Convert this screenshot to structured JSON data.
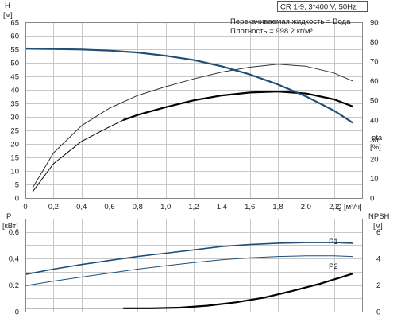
{
  "chart_data": [
    {
      "type": "line",
      "title": "CR 1-9, 3*400 V, 50Hz",
      "annotations": [
        "Перекачиваемая жидкость = Вода",
        "Плотность = 998.2 кг/м³"
      ],
      "x_axis": {
        "label": "Q [м³/ч]",
        "ticks": [
          "0",
          "0,2",
          "0,4",
          "0,6",
          "0,8",
          "1,0",
          "1,2",
          "1,4",
          "1,6",
          "1,8",
          "2,0",
          "2,2"
        ],
        "range": [
          0,
          2.4
        ]
      },
      "y_left": {
        "label_top": "H",
        "unit": "[м]",
        "ticks": [
          "0",
          "5",
          "10",
          "15",
          "20",
          "25",
          "30",
          "35",
          "40",
          "45",
          "50",
          "55",
          "60",
          "65"
        ],
        "range": [
          0,
          65
        ]
      },
      "y_right": {
        "label_top": "eta",
        "unit": "[%]",
        "ticks": [
          "0",
          "10",
          "20",
          "30",
          "40",
          "50",
          "60",
          "70",
          "80",
          "90"
        ],
        "range": [
          0,
          90
        ]
      },
      "grid": true,
      "series": [
        {
          "name": "",
          "axis": "left",
          "color": "#1f4e79",
          "x": [
            0,
            0.2,
            0.4,
            0.6,
            0.8,
            1.0,
            1.2,
            1.4,
            1.6,
            1.8,
            2.0,
            2.2,
            2.33
          ],
          "y": [
            55.3,
            55.1,
            54.9,
            54.5,
            53.8,
            52.6,
            51.0,
            48.7,
            45.7,
            42.0,
            37.6,
            32.3,
            27.9
          ]
        },
        {
          "name": "",
          "axis": "right",
          "color": "#333333",
          "x": [
            0.05,
            0.2,
            0.4,
            0.6,
            0.8,
            1.0,
            1.2,
            1.4,
            1.6,
            1.8,
            2.0,
            2.2,
            2.33
          ],
          "y": [
            5,
            23,
            37,
            46,
            52.5,
            57,
            61,
            64.5,
            67,
            68.5,
            67.5,
            64,
            60
          ]
        },
        {
          "name": "",
          "axis": "right",
          "color": "#000000",
          "x": [
            0.05,
            0.2,
            0.4,
            0.6,
            0.7,
            0.8,
            1.0,
            1.2,
            1.4,
            1.6,
            1.8,
            2.0,
            2.2,
            2.33
          ],
          "y": [
            3,
            17.5,
            29,
            36.5,
            40,
            42.5,
            46.5,
            50,
            52.5,
            54,
            54.5,
            53.5,
            50.5,
            47
          ]
        }
      ]
    },
    {
      "type": "line",
      "x_axis": {
        "range": [
          0,
          2.4
        ]
      },
      "y_left": {
        "label_top": "P",
        "unit": "[кВт]",
        "ticks": [
          "0",
          "0.2",
          "0.4",
          "0.6"
        ],
        "range": [
          0,
          0.7
        ]
      },
      "y_right": {
        "label_top": "NPSH",
        "unit": "[м]",
        "ticks": [
          "0",
          "2",
          "4",
          "6"
        ],
        "range": [
          0,
          7
        ]
      },
      "grid": true,
      "series": [
        {
          "name": "P1",
          "axis": "left",
          "color": "#1f4e79",
          "x": [
            0,
            0.2,
            0.4,
            0.6,
            0.8,
            1.0,
            1.2,
            1.4,
            1.6,
            1.8,
            2.0,
            2.2,
            2.33
          ],
          "y": [
            0.28,
            0.32,
            0.355,
            0.385,
            0.415,
            0.44,
            0.465,
            0.49,
            0.505,
            0.515,
            0.52,
            0.52,
            0.515
          ]
        },
        {
          "name": "P2",
          "axis": "left",
          "color": "#1f4e79",
          "x": [
            0,
            0.2,
            0.4,
            0.6,
            0.8,
            1.0,
            1.2,
            1.4,
            1.6,
            1.8,
            2.0,
            2.2,
            2.33
          ],
          "y": [
            0.195,
            0.23,
            0.26,
            0.29,
            0.32,
            0.345,
            0.37,
            0.39,
            0.405,
            0.415,
            0.42,
            0.42,
            0.415
          ]
        },
        {
          "name": "",
          "axis": "right",
          "color": "#000000",
          "x": [
            0.7,
            0.9,
            1.1,
            1.3,
            1.5,
            1.7,
            1.9,
            2.1,
            2.33
          ],
          "y": [
            0.25,
            0.25,
            0.3,
            0.45,
            0.7,
            1.05,
            1.55,
            2.1,
            2.85
          ]
        }
      ]
    }
  ]
}
